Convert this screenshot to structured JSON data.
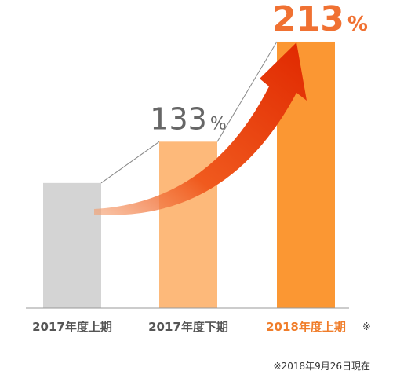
{
  "chart_data": {
    "type": "bar",
    "categories": [
      "2017年度上期",
      "2017年度下期",
      "2018年度上期"
    ],
    "values": [
      100,
      133,
      213
    ],
    "value_labels": [
      null,
      "133%",
      "213%"
    ],
    "colors": [
      "#d4d4d4",
      "#fdb97a",
      "#fb9733"
    ],
    "label_colors": [
      "#666666",
      "#666666",
      "#f07132"
    ],
    "category_colors": [
      "#555555",
      "#555555",
      "#f07d2a"
    ],
    "ylim": [
      0,
      240
    ],
    "annotations": [
      "※",
      "※2018年9月26日現在"
    ]
  }
}
